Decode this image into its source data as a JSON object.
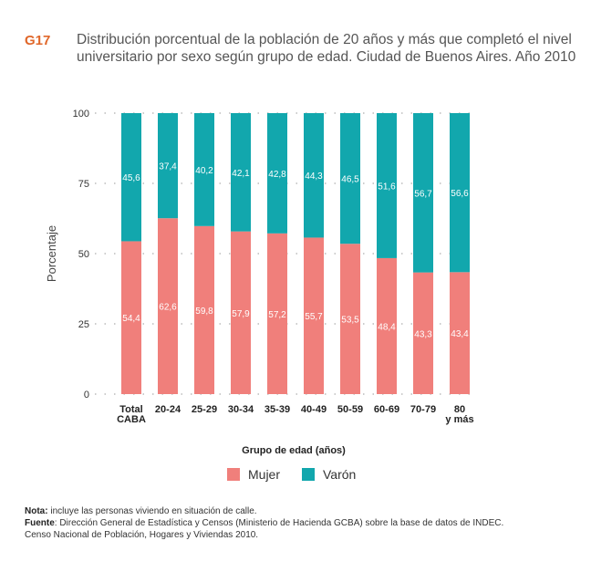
{
  "figure": {
    "id": "G17",
    "title": "Distribución porcentual de la población de 20 años y más que completó el nivel universitario por sexo según grupo de edad. Ciudad de Buenos Aires. Año 2010"
  },
  "chart_data": {
    "type": "bar",
    "stacked": true,
    "categories": [
      "Total\nCABA",
      "20-24",
      "25-29",
      "30-34",
      "35-39",
      "40-49",
      "50-59",
      "60-69",
      "70-79",
      "80\ny más"
    ],
    "series": [
      {
        "name": "Mujer",
        "color": "#f07f7b",
        "values": [
          54.4,
          62.6,
          59.8,
          57.9,
          57.2,
          55.7,
          53.5,
          48.4,
          43.3,
          43.4
        ],
        "labels": [
          "54,4",
          "62,6",
          "59,8",
          "57,9",
          "57,2",
          "55,7",
          "53,5",
          "48,4",
          "43,3",
          "43,4"
        ]
      },
      {
        "name": "Varón",
        "color": "#12a7ad",
        "values": [
          45.6,
          37.4,
          40.2,
          42.1,
          42.8,
          44.3,
          46.5,
          51.6,
          56.7,
          56.6
        ],
        "labels": [
          "45,6",
          "37,4",
          "40,2",
          "42,1",
          "42,8",
          "44,3",
          "46,5",
          "51,6",
          "56,7",
          "56,6"
        ]
      }
    ],
    "xlabel": "Grupo de edad (años)",
    "ylabel": "Porcentaje",
    "ylim": [
      0,
      100
    ],
    "yticks": [
      0,
      25,
      50,
      75,
      100
    ],
    "grid": true,
    "legend": "bottom-center"
  },
  "notes": {
    "nota_label": "Nota:",
    "nota_text": " incluye las personas viviendo en situación de calle.",
    "fuente_label": "Fuente",
    "fuente_text": ": Dirección General de Estadística y Censos (Ministerio de Hacienda GCBA) sobre la base de datos de INDEC.",
    "fuente_line2": "Censo Nacional de Población, Hogares y Viviendas 2010."
  }
}
